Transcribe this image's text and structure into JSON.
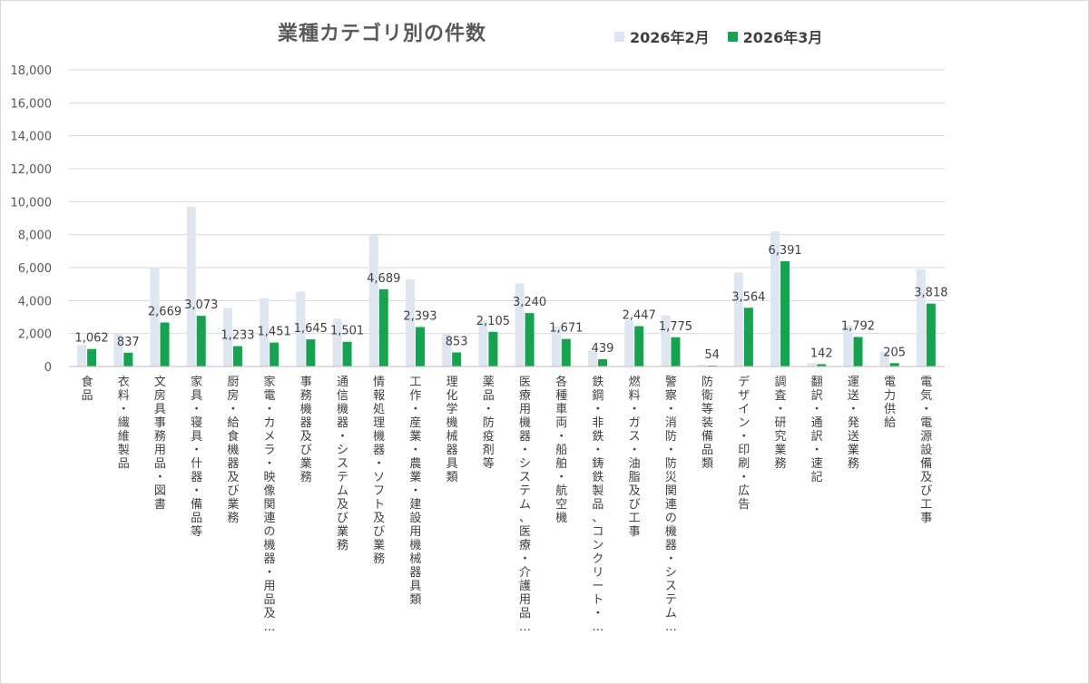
{
  "colors": {
    "feb": "#dde6f1",
    "mar": "#16a34f",
    "grid": "#d9d9d9",
    "text": "#595959"
  },
  "chart_data": {
    "type": "bar",
    "title": "業種カテゴリ別の件数",
    "ylim": [
      0,
      18000
    ],
    "yticks": [
      "0",
      "2,000",
      "4,000",
      "6,000",
      "8,000",
      "10,000",
      "12,000",
      "14,000",
      "16,000",
      "18,000"
    ],
    "ytick_values": [
      0,
      2000,
      4000,
      6000,
      8000,
      10000,
      12000,
      14000,
      16000,
      18000
    ],
    "grid": true,
    "legend_position": "top-right",
    "categories": [
      "食品",
      "衣料・繊維製品",
      "文房具事務用品・図書",
      "家具・寝具・什器・備品等",
      "厨房・給食機器及び業務",
      "家電・カメラ・映像関連の機器・用品及…",
      "事務機器及び業務",
      "通信機器・システム及び業務",
      "情報処理機器・ソフト及び業務",
      "工作・産業・農業・建設用機械器具類",
      "理化学機械器具類",
      "薬品・防疫剤等",
      "医療用機器・システム、医療・介護用品…",
      "各種車両・船舶・航空機",
      "鉄鋼・非鉄・鋳鉄製品、コンクリート・…",
      "燃料・ガス・油脂及び工事",
      "警察・消防・防災関連の機器・システム…",
      "防衛等装備品類",
      "デザイン・印刷・広告",
      "調査・研究業務",
      "翻訳・通訳・速記",
      "運送・発送業務",
      "電力供給",
      "電気・電源設備及び工事"
    ],
    "series": [
      {
        "name": "2026年2月",
        "values": [
          1300,
          2000,
          6000,
          9700,
          3550,
          4150,
          4550,
          2900,
          8000,
          5300,
          2000,
          2800,
          5050,
          2450,
          950,
          2800,
          3100,
          100,
          5700,
          8200,
          200,
          2500,
          900,
          5900
        ],
        "labels": []
      },
      {
        "name": "2026年3月",
        "values": [
          1062,
          837,
          2669,
          3073,
          1233,
          1451,
          1645,
          1501,
          4689,
          2393,
          853,
          2105,
          3240,
          1671,
          439,
          2447,
          1775,
          54,
          3564,
          6391,
          142,
          1792,
          205,
          3818
        ],
        "labels": [
          "1,062",
          "837",
          "2,669",
          "3,073",
          "1,233",
          "1,451",
          "1,645",
          "1,501",
          "4,689",
          "2,393",
          "853",
          "2,105",
          "3,240",
          "1,671",
          "439",
          "2,447",
          "1,775",
          "54",
          "3,564",
          "6,391",
          "142",
          "1,792",
          "205",
          "3,818"
        ]
      }
    ]
  }
}
